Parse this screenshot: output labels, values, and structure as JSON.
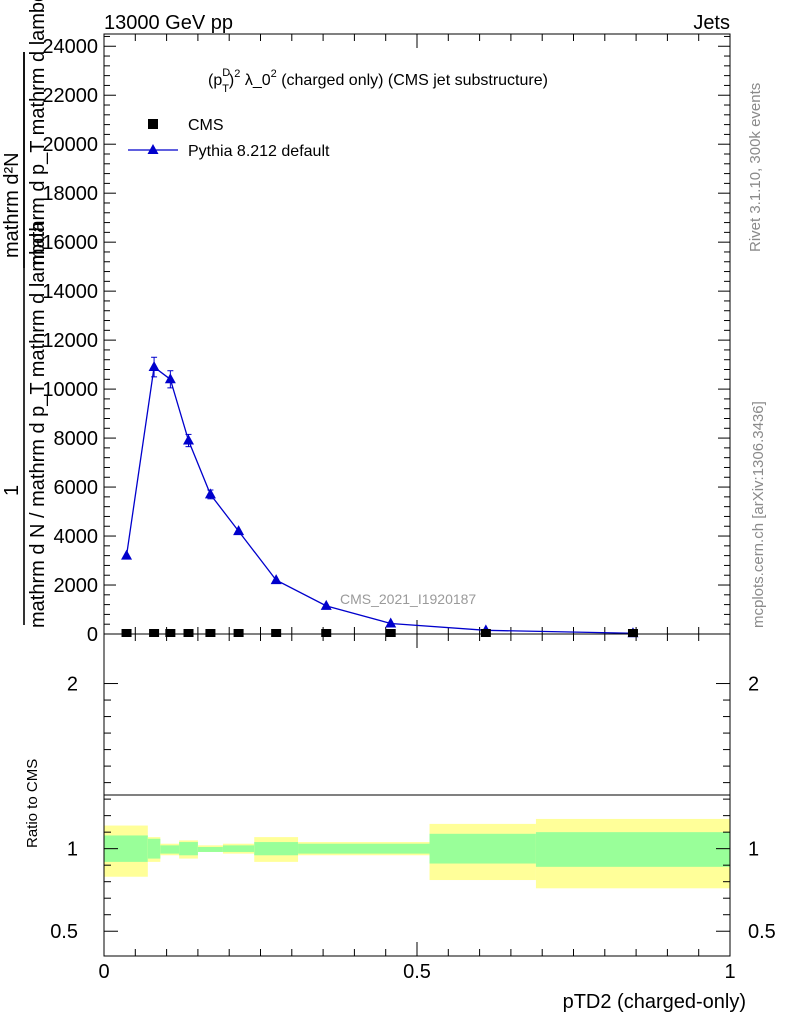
{
  "header": {
    "energy_label": "13000 GeV pp",
    "process_label": "Jets"
  },
  "side_labels": {
    "rivet": "Rivet 3.1.10,  300k events",
    "mcplots": "mcplots.cern.ch [arXiv:1306.3436]"
  },
  "chart_data": [
    {
      "type": "line",
      "title_parts": {
        "pre": "(p",
        "sup1": "D",
        "sub1": "T",
        "mid": ")",
        "sup2": "2",
        "lambda": " λ_0",
        "sup3": "2",
        "post": " (charged only) (CMS jet substructure)"
      },
      "ylabel": {
        "frac_numerator": "1",
        "frac_denominator": "mathrm d N / mathrm d p_T mathrm d lambda",
        "right_numerator": "mathrm d²N",
        "right_denominator": "mathrm d p_T mathrm d lambda"
      },
      "watermark": "CMS_2021_I1920187",
      "xlim": [
        0,
        1
      ],
      "ylim": [
        0,
        24500
      ],
      "y_ticks": [
        0,
        2000,
        4000,
        6000,
        8000,
        10000,
        12000,
        14000,
        16000,
        18000,
        20000,
        22000,
        24000
      ],
      "y_tick_labels": [
        "0",
        "2000",
        "4000",
        "6000",
        "8000",
        "10000",
        "12000",
        "14000",
        "16000",
        "18000",
        "20000",
        "22000",
        "24000"
      ],
      "legend": [
        {
          "name": "CMS",
          "marker": "square",
          "color": "#000000"
        },
        {
          "name": "Pythia 8.212 default",
          "marker": "triangle",
          "color": "#0000cc"
        }
      ],
      "series": [
        {
          "name": "CMS",
          "x": [
            0.036,
            0.08,
            0.106,
            0.135,
            0.17,
            0.215,
            0.275,
            0.355,
            0.458,
            0.61,
            0.845
          ],
          "values": [
            0,
            0,
            0,
            0,
            0,
            0,
            0,
            0,
            0,
            0,
            0
          ]
        },
        {
          "name": "Pythia 8.212 default",
          "x": [
            0.036,
            0.08,
            0.106,
            0.135,
            0.17,
            0.215,
            0.275,
            0.355,
            0.458,
            0.61,
            0.845
          ],
          "values": [
            3200,
            10900,
            10400,
            7900,
            5700,
            4200,
            2200,
            1150,
            430,
            150,
            30
          ],
          "errors": [
            120,
            400,
            350,
            250,
            180,
            100,
            60,
            40,
            20,
            10,
            5
          ]
        }
      ]
    },
    {
      "type": "area",
      "ylabel": "Ratio to CMS",
      "xlabel": "pTD2 (charged-only)",
      "xlim": [
        0,
        1
      ],
      "ylim": [
        0.35,
        2.3
      ],
      "x_ticks": [
        0,
        0.5,
        1
      ],
      "x_tick_labels": [
        "0",
        "0.5",
        "1"
      ],
      "y_ticks": [
        0.5,
        1,
        2
      ],
      "y_tick_labels": [
        "0.5",
        "1",
        "2"
      ],
      "bins": [
        {
          "lo": 0.0,
          "hi": 0.07,
          "inner": [
            0.92,
            1.08
          ],
          "outer": [
            0.83,
            1.14
          ]
        },
        {
          "lo": 0.07,
          "hi": 0.09,
          "inner": [
            0.94,
            1.06
          ],
          "outer": [
            0.92,
            1.07
          ]
        },
        {
          "lo": 0.09,
          "hi": 0.12,
          "inner": [
            0.97,
            1.02
          ],
          "outer": [
            0.96,
            1.03
          ]
        },
        {
          "lo": 0.12,
          "hi": 0.15,
          "inner": [
            0.96,
            1.04
          ],
          "outer": [
            0.94,
            1.05
          ]
        },
        {
          "lo": 0.15,
          "hi": 0.19,
          "inner": [
            0.98,
            1.01
          ],
          "outer": [
            0.98,
            1.02
          ]
        },
        {
          "lo": 0.19,
          "hi": 0.24,
          "inner": [
            0.98,
            1.02
          ],
          "outer": [
            0.97,
            1.03
          ]
        },
        {
          "lo": 0.24,
          "hi": 0.31,
          "inner": [
            0.96,
            1.04
          ],
          "outer": [
            0.92,
            1.07
          ]
        },
        {
          "lo": 0.31,
          "hi": 0.52,
          "inner": [
            0.97,
            1.03
          ],
          "outer": [
            0.96,
            1.04
          ]
        },
        {
          "lo": 0.52,
          "hi": 0.69,
          "inner": [
            0.91,
            1.09
          ],
          "outer": [
            0.81,
            1.15
          ]
        },
        {
          "lo": 0.69,
          "hi": 1.0,
          "inner": [
            0.89,
            1.1
          ],
          "outer": [
            0.76,
            1.18
          ]
        }
      ],
      "bands": {
        "inner_color": "#99ff99",
        "outer_color": "#ffff99"
      }
    }
  ]
}
